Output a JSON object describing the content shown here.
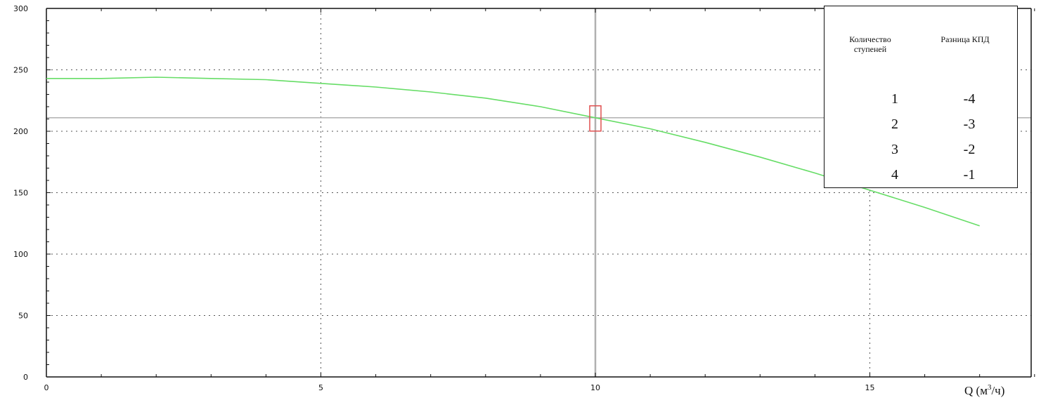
{
  "chart_data": {
    "type": "line",
    "title": "",
    "xlabel": "Q (м³/ч)",
    "xlabel_parts": {
      "main": "Q (м",
      "sup": "3",
      "end": "/ч)"
    },
    "ylabel": "",
    "xlim": [
      0,
      18
    ],
    "ylim": [
      0,
      300
    ],
    "x_ticks": [
      0,
      5,
      10,
      15
    ],
    "y_ticks": [
      0,
      50,
      100,
      150,
      200,
      250,
      300
    ],
    "grid": "dotted",
    "series": [
      {
        "x": [
          0,
          1,
          2,
          3,
          4,
          5,
          6,
          7,
          8,
          9,
          10,
          11,
          12,
          13,
          14,
          15,
          16,
          17
        ],
        "values": [
          243,
          243,
          244,
          243,
          242,
          239,
          236,
          232,
          227,
          220,
          211,
          202,
          191,
          179,
          166,
          152,
          138,
          123
        ],
        "color": "#66dd66"
      }
    ],
    "operating_point": {
      "x": 10,
      "y": 211,
      "marker_color": "#e05050"
    },
    "crosshair": {
      "x": 10,
      "y": 211,
      "color": "#b0b0b0"
    }
  },
  "table": {
    "headers": [
      "Количество ступеней",
      "Разница КПД"
    ],
    "rows": [
      [
        "1",
        "-4"
      ],
      [
        "2",
        "-3"
      ],
      [
        "3",
        "-2"
      ],
      [
        "4",
        "-1"
      ]
    ]
  }
}
